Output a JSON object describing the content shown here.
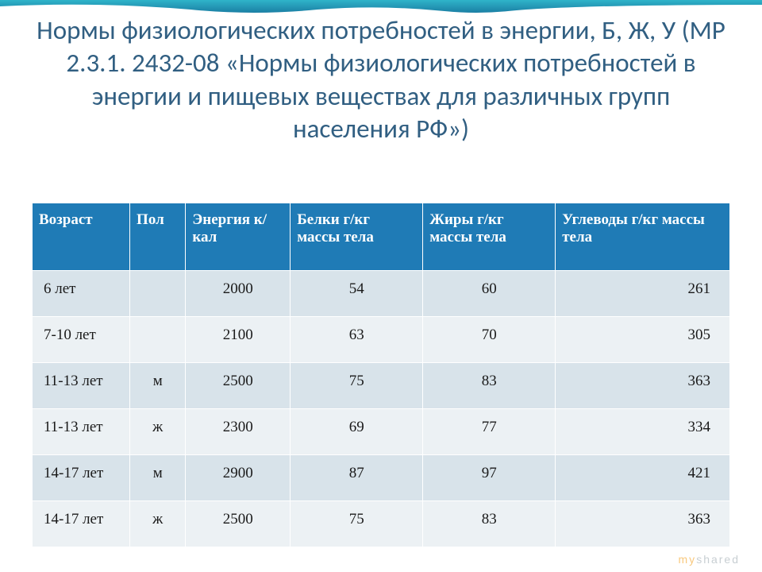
{
  "accent": {
    "gradient_from": "#2fb4c9",
    "gradient_to": "#1b7fa4",
    "height": 20
  },
  "title": {
    "text": "Нормы физиологических потребностей в энергии, Б, Ж, У (МР 2.3.1. 2432-08 «Нормы физиологических потребностей в энергии и пищевых веществах для различных групп населения РФ»)",
    "color": "#315f82",
    "fontsize": 33,
    "align": "center"
  },
  "table": {
    "type": "table",
    "header_bg": "#1f7bb6",
    "header_text_color": "#ffffff",
    "row_alt_a": "#d8e3ea",
    "row_alt_b": "#ecf1f4",
    "border_color": "#ffffff",
    "header_fontsize": 19,
    "cell_fontsize": 19,
    "col_widths_pct": [
      14,
      8,
      15,
      19,
      19,
      25
    ],
    "columns": [
      "Возраст",
      "Пол",
      "Энергия к/кал",
      "Белки  г/кг массы тела",
      "Жиры г/кг массы тела",
      "Углеводы г/кг массы тела"
    ],
    "rows": [
      {
        "age": "6 лет",
        "gender": "",
        "energy": "2000",
        "protein": "54",
        "fat": "60",
        "carb": "261"
      },
      {
        "age": "7-10 лет",
        "gender": "",
        "energy": "2100",
        "protein": "63",
        "fat": "70",
        "carb": "305"
      },
      {
        "age": "11-13 лет",
        "gender": "м",
        "energy": "2500",
        "protein": "75",
        "fat": "83",
        "carb": "363"
      },
      {
        "age": "11-13 лет",
        "gender": "ж",
        "energy": "2300",
        "protein": "69",
        "fat": "77",
        "carb": "334"
      },
      {
        "age": "14-17 лет",
        "gender": "м",
        "energy": "2900",
        "protein": "87",
        "fat": "97",
        "carb": "421"
      },
      {
        "age": "14-17 лет",
        "gender": "ж",
        "energy": "2500",
        "protein": "75",
        "fat": "83",
        "carb": "363"
      }
    ]
  },
  "watermark": {
    "text": "myshared",
    "color_my": "#f39c12",
    "color_shared": "#9aa7ae"
  }
}
